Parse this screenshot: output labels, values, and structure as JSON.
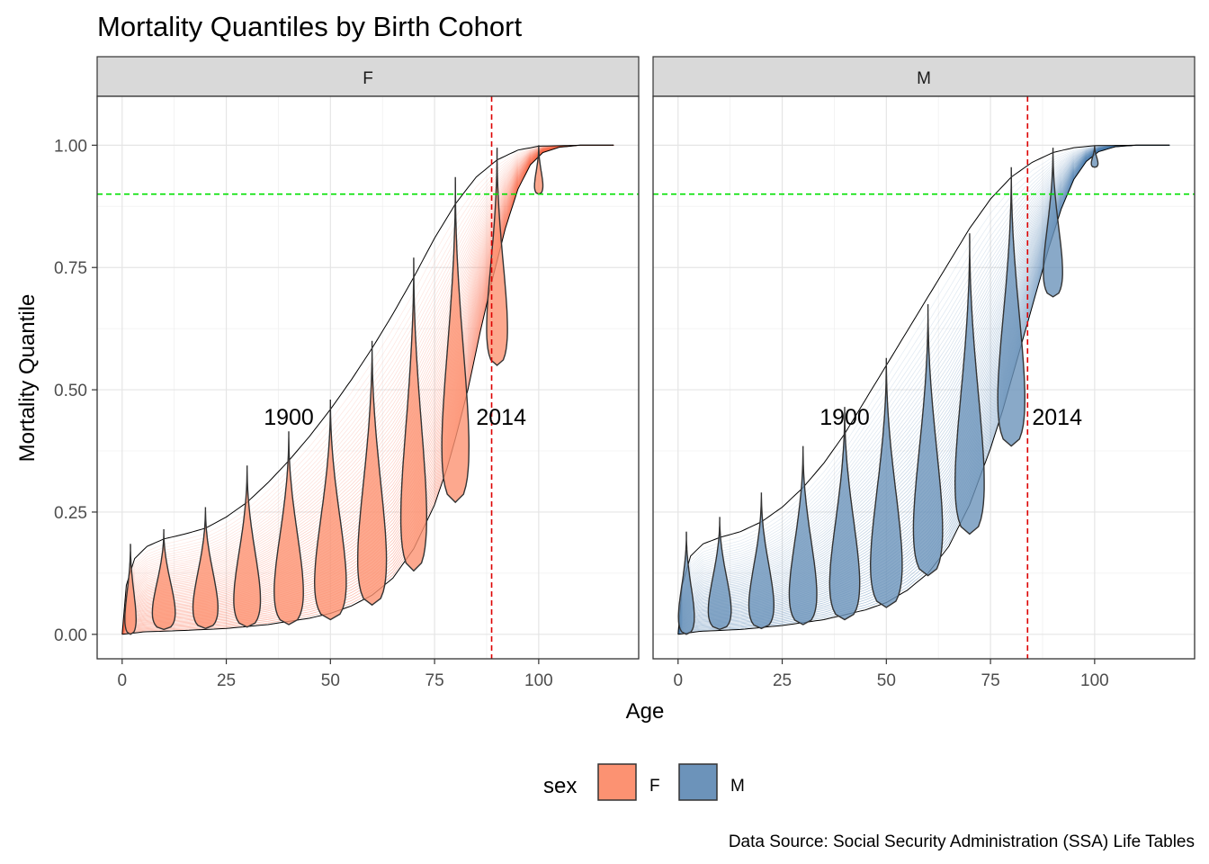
{
  "chart_data": {
    "type": "line",
    "title": "Mortality Quantiles by Birth Cohort",
    "xlabel": "Age",
    "ylabel": "Mortality Quantile",
    "caption": "Data Source: Social Security Administration (SSA) Life Tables",
    "xlim": [
      -6,
      124
    ],
    "ylim": [
      -0.05,
      1.1
    ],
    "x_ticks": [
      0,
      25,
      50,
      75,
      100
    ],
    "y_ticks": [
      0.0,
      0.25,
      0.5,
      0.75,
      1.0
    ],
    "x_tick_labels": [
      "0",
      "25",
      "50",
      "75",
      "100"
    ],
    "y_tick_labels": [
      "0.00",
      "0.25",
      "0.50",
      "0.75",
      "1.00"
    ],
    "grid": true,
    "legend": {
      "title": "sex",
      "position": "bottom",
      "entries": [
        {
          "key": "F",
          "label": "F",
          "color": "#FC9272"
        },
        {
          "key": "M",
          "label": "M",
          "color": "#6C93BA"
        }
      ]
    },
    "reference_line_h": {
      "y": 0.9,
      "color": "#00E000"
    },
    "panels": [
      {
        "key": "F",
        "label": "F",
        "color": "#FC9272",
        "line_color": "#FB6A4A",
        "vline_x": 88.7,
        "cohort_labels": [
          {
            "text": "1900",
            "x": 40,
            "y": 0.445
          },
          {
            "text": "2014",
            "x": 91,
            "y": 0.445
          }
        ],
        "curve_1900": [
          [
            0,
            0
          ],
          [
            1,
            0.1
          ],
          [
            3,
            0.155
          ],
          [
            6,
            0.18
          ],
          [
            10,
            0.195
          ],
          [
            15,
            0.205
          ],
          [
            20,
            0.217
          ],
          [
            25,
            0.24
          ],
          [
            30,
            0.27
          ],
          [
            35,
            0.31
          ],
          [
            40,
            0.355
          ],
          [
            45,
            0.405
          ],
          [
            50,
            0.46
          ],
          [
            55,
            0.52
          ],
          [
            60,
            0.585
          ],
          [
            65,
            0.655
          ],
          [
            70,
            0.73
          ],
          [
            75,
            0.81
          ],
          [
            80,
            0.88
          ],
          [
            85,
            0.935
          ],
          [
            90,
            0.97
          ],
          [
            95,
            0.99
          ],
          [
            100,
            0.998
          ],
          [
            110,
            1.0
          ],
          [
            118,
            1.0
          ]
        ],
        "curve_2014": [
          [
            0,
            0
          ],
          [
            5,
            0.005
          ],
          [
            15,
            0.008
          ],
          [
            25,
            0.012
          ],
          [
            35,
            0.02
          ],
          [
            45,
            0.033
          ],
          [
            50,
            0.043
          ],
          [
            55,
            0.058
          ],
          [
            60,
            0.08
          ],
          [
            65,
            0.115
          ],
          [
            70,
            0.175
          ],
          [
            75,
            0.265
          ],
          [
            78,
            0.34
          ],
          [
            80,
            0.4
          ],
          [
            83,
            0.5
          ],
          [
            86,
            0.62
          ],
          [
            89,
            0.73
          ],
          [
            92,
            0.83
          ],
          [
            95,
            0.91
          ],
          [
            98,
            0.96
          ],
          [
            101,
            0.985
          ],
          [
            105,
            0.996
          ],
          [
            110,
            1.0
          ],
          [
            118,
            1.0
          ]
        ],
        "violins": [
          {
            "age": 2,
            "ymin": 0.0,
            "ymax": 0.185,
            "width": 2.7
          },
          {
            "age": 10,
            "ymin": 0.01,
            "ymax": 0.215,
            "width": 5.5
          },
          {
            "age": 20,
            "ymin": 0.012,
            "ymax": 0.26,
            "width": 6.0
          },
          {
            "age": 30,
            "ymin": 0.015,
            "ymax": 0.345,
            "width": 6.4
          },
          {
            "age": 40,
            "ymin": 0.02,
            "ymax": 0.415,
            "width": 7.0
          },
          {
            "age": 50,
            "ymin": 0.03,
            "ymax": 0.48,
            "width": 7.6
          },
          {
            "age": 60,
            "ymin": 0.06,
            "ymax": 0.6,
            "width": 6.9
          },
          {
            "age": 70,
            "ymin": 0.13,
            "ymax": 0.77,
            "width": 6.2
          },
          {
            "age": 80,
            "ymin": 0.27,
            "ymax": 0.935,
            "width": 6.5
          },
          {
            "age": 90,
            "ymin": 0.55,
            "ymax": 0.995,
            "width": 5.0
          },
          {
            "age": 100,
            "ymin": 0.9,
            "ymax": 1.0,
            "width": 2.0
          }
        ]
      },
      {
        "key": "M",
        "label": "M",
        "color": "#6C93BA",
        "line_color": "#4A7DB0",
        "vline_x": 83.9,
        "cohort_labels": [
          {
            "text": "1900",
            "x": 40,
            "y": 0.445
          },
          {
            "text": "2014",
            "x": 91,
            "y": 0.445
          }
        ],
        "curve_1900": [
          [
            0,
            0
          ],
          [
            1,
            0.1
          ],
          [
            3,
            0.16
          ],
          [
            6,
            0.185
          ],
          [
            10,
            0.198
          ],
          [
            15,
            0.21
          ],
          [
            20,
            0.23
          ],
          [
            25,
            0.26
          ],
          [
            30,
            0.3
          ],
          [
            35,
            0.35
          ],
          [
            40,
            0.41
          ],
          [
            45,
            0.48
          ],
          [
            50,
            0.55
          ],
          [
            55,
            0.62
          ],
          [
            60,
            0.69
          ],
          [
            65,
            0.76
          ],
          [
            70,
            0.83
          ],
          [
            75,
            0.89
          ],
          [
            80,
            0.935
          ],
          [
            85,
            0.965
          ],
          [
            90,
            0.985
          ],
          [
            95,
            0.995
          ],
          [
            100,
            0.999
          ],
          [
            110,
            1.0
          ],
          [
            118,
            1.0
          ]
        ],
        "curve_2014": [
          [
            0,
            0
          ],
          [
            5,
            0.006
          ],
          [
            15,
            0.01
          ],
          [
            25,
            0.018
          ],
          [
            35,
            0.03
          ],
          [
            45,
            0.05
          ],
          [
            50,
            0.065
          ],
          [
            55,
            0.09
          ],
          [
            60,
            0.125
          ],
          [
            65,
            0.18
          ],
          [
            70,
            0.265
          ],
          [
            75,
            0.38
          ],
          [
            78,
            0.46
          ],
          [
            80,
            0.52
          ],
          [
            83,
            0.61
          ],
          [
            86,
            0.7
          ],
          [
            89,
            0.79
          ],
          [
            92,
            0.87
          ],
          [
            95,
            0.93
          ],
          [
            98,
            0.967
          ],
          [
            101,
            0.987
          ],
          [
            105,
            0.997
          ],
          [
            110,
            1.0
          ],
          [
            118,
            1.0
          ]
        ],
        "violins": [
          {
            "age": 2,
            "ymin": 0.0,
            "ymax": 0.21,
            "width": 3.8
          },
          {
            "age": 10,
            "ymin": 0.01,
            "ymax": 0.24,
            "width": 5.5
          },
          {
            "age": 20,
            "ymin": 0.012,
            "ymax": 0.29,
            "width": 6.0
          },
          {
            "age": 30,
            "ymin": 0.02,
            "ymax": 0.385,
            "width": 6.6
          },
          {
            "age": 40,
            "ymin": 0.03,
            "ymax": 0.465,
            "width": 7.2
          },
          {
            "age": 50,
            "ymin": 0.055,
            "ymax": 0.565,
            "width": 7.6
          },
          {
            "age": 60,
            "ymin": 0.12,
            "ymax": 0.675,
            "width": 7.0
          },
          {
            "age": 70,
            "ymin": 0.205,
            "ymax": 0.82,
            "width": 7.0
          },
          {
            "age": 80,
            "ymin": 0.385,
            "ymax": 0.955,
            "width": 6.5
          },
          {
            "age": 90,
            "ymin": 0.69,
            "ymax": 0.995,
            "width": 4.6
          },
          {
            "age": 100,
            "ymin": 0.955,
            "ymax": 1.0,
            "width": 1.6
          }
        ]
      }
    ]
  }
}
